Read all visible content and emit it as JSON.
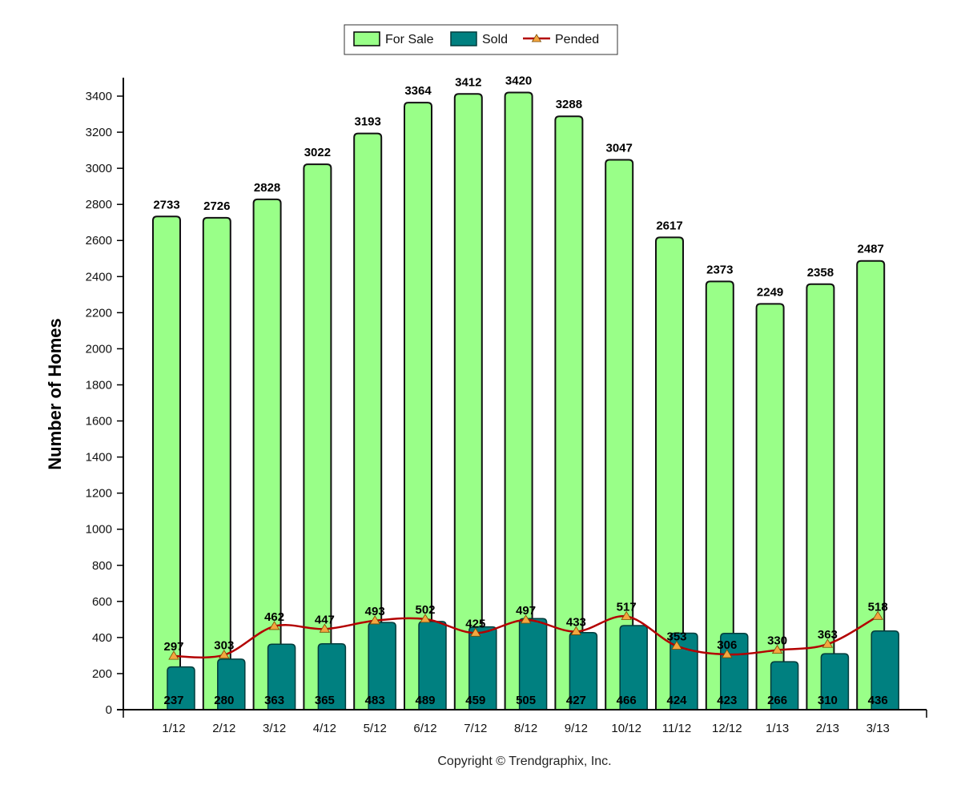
{
  "chart_data": {
    "type": "bar",
    "ylabel": "Number of Homes",
    "xlabel": "",
    "ylim": [
      0,
      3500
    ],
    "yticks": [
      0,
      200,
      400,
      600,
      800,
      1000,
      1200,
      1400,
      1600,
      1800,
      2000,
      2200,
      2400,
      2600,
      2800,
      3000,
      3200,
      3400
    ],
    "categories": [
      "1/12",
      "2/12",
      "3/12",
      "4/12",
      "5/12",
      "6/12",
      "7/12",
      "8/12",
      "9/12",
      "10/12",
      "11/12",
      "12/12",
      "1/13",
      "2/13",
      "3/13"
    ],
    "series": [
      {
        "name": "For Sale",
        "type": "bar",
        "color": "#99ff88",
        "values": [
          2733,
          2726,
          2828,
          3022,
          3193,
          3364,
          3412,
          3420,
          3288,
          3047,
          2617,
          2373,
          2249,
          2358,
          2487
        ]
      },
      {
        "name": "Sold",
        "type": "bar",
        "color": "#008080",
        "values": [
          237,
          280,
          363,
          365,
          483,
          489,
          459,
          505,
          427,
          466,
          424,
          423,
          266,
          310,
          436
        ]
      },
      {
        "name": "Pended",
        "type": "line",
        "color": "#b30000",
        "marker_color": "#f4a640",
        "values": [
          297,
          303,
          462,
          447,
          493,
          502,
          425,
          497,
          433,
          517,
          353,
          306,
          330,
          363,
          518
        ]
      }
    ],
    "legend": "top-center",
    "grid": false
  },
  "footer": {
    "copyright": "Copyright © Trendgraphix, Inc."
  }
}
